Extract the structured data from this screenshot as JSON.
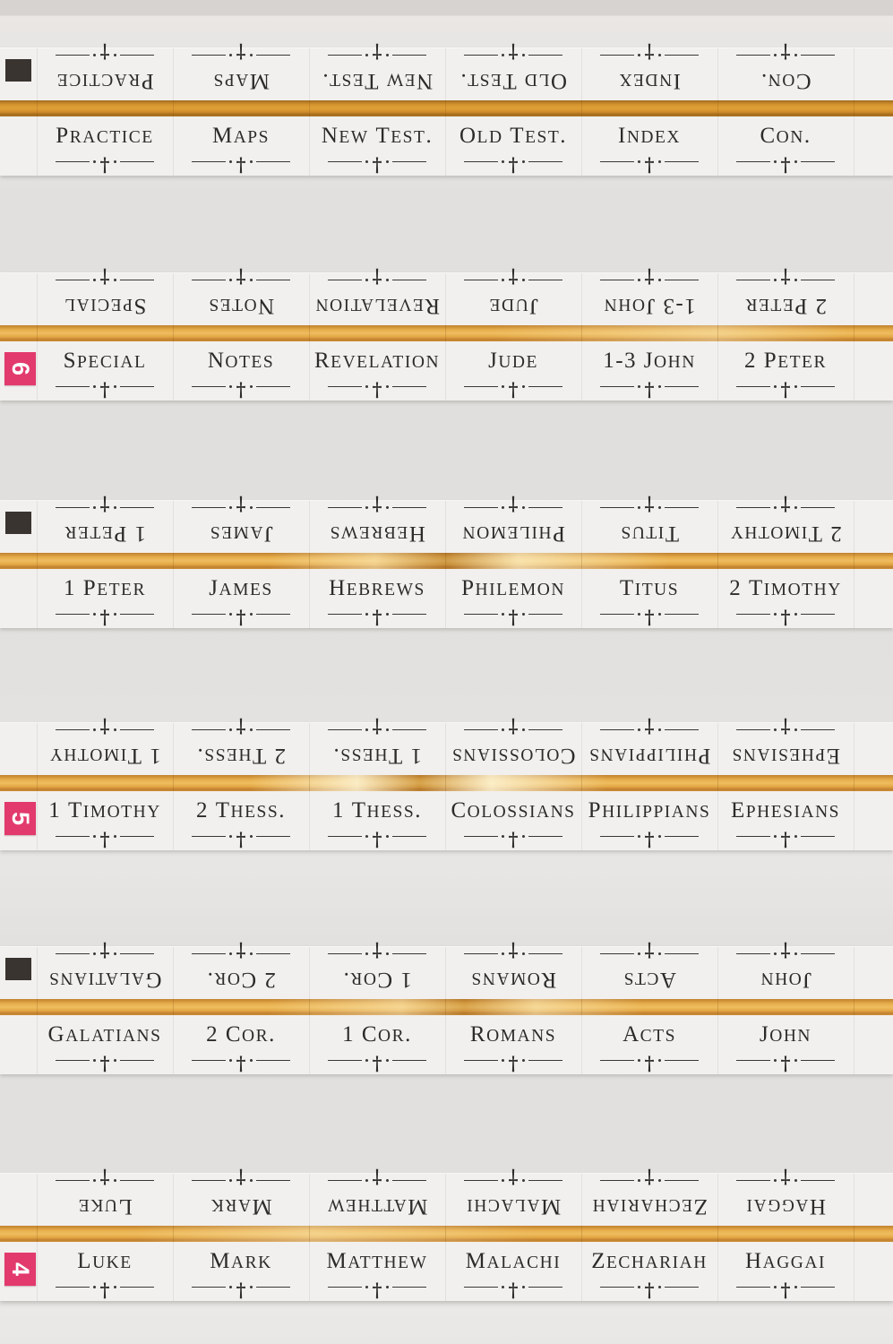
{
  "product": "bible-index-tab-sticker-sheets",
  "colors": {
    "gold_foil": "#e0a440",
    "gold_foil_dark": "#a06a1c",
    "hot_pink": "#e23a6d",
    "black_marker": "#39342f",
    "label_text": "#2d2b29",
    "strip_bg": "#f2f0ee",
    "page_bg": "#e2e0de"
  },
  "ornament": {
    "cross_glyph": "†"
  },
  "rows": [
    {
      "marker": {
        "type": "black-square"
      },
      "tabs": [
        "PRACTICE",
        "MAPS",
        "NEW TEST.",
        "OLD TEST.",
        "INDEX",
        "CON."
      ]
    },
    {
      "marker": {
        "type": "number",
        "value": "6"
      },
      "tabs": [
        "SPECIAL",
        "NOTES",
        "REVELATION",
        "JUDE",
        "1-3 JOHN",
        "2 PETER"
      ]
    },
    {
      "marker": {
        "type": "black-square"
      },
      "tabs": [
        "1 PETER",
        "JAMES",
        "HEBREWS",
        "PHILEMON",
        "TITUS",
        "2 TIMOTHY"
      ]
    },
    {
      "marker": {
        "type": "number",
        "value": "5"
      },
      "tabs": [
        "1 TIMOTHY",
        "2 THESS.",
        "1 THESS.",
        "COLOSSIANS",
        "PHILIPPIANS",
        "EPHESIANS"
      ]
    },
    {
      "marker": {
        "type": "black-square"
      },
      "tabs": [
        "GALATIANS",
        "2 COR.",
        "1 COR.",
        "ROMANS",
        "ACTS",
        "JOHN"
      ]
    },
    {
      "marker": {
        "type": "number",
        "value": "4"
      },
      "tabs": [
        "LUKE",
        "MARK",
        "MATTHEW",
        "MALACHI",
        "ZECHARIAH",
        "HAGGAI"
      ]
    }
  ]
}
